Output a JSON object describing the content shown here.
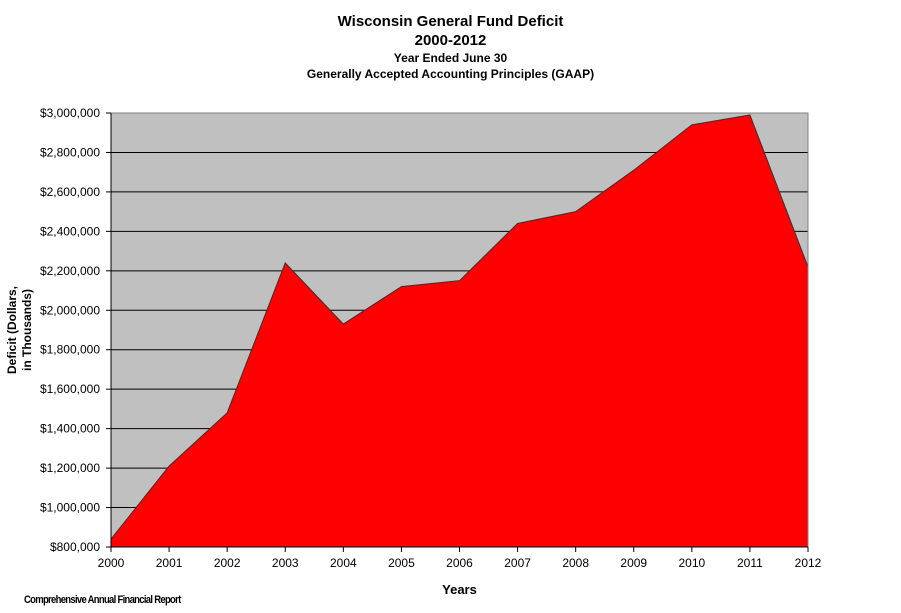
{
  "header": {
    "title": "Wisconsin General Fund Deficit",
    "subtitle": "2000-2012",
    "line3": "Year Ended June 30",
    "line4": "Generally Accepted Accounting  Principles (GAAP)"
  },
  "footer": {
    "source": "Comprehensive Annual Financial Report"
  },
  "colors": {
    "plot_background": "#c0c0c0",
    "area_fill": "#ff0000",
    "gridline": "#000000"
  },
  "chart_data": {
    "type": "area",
    "title": "Wisconsin General Fund Deficit",
    "xlabel": "Years",
    "ylabel_lines": [
      "Deficit (Dollars,",
      "in Thousands)"
    ],
    "x": [
      "2000",
      "2001",
      "2002",
      "2003",
      "2004",
      "2005",
      "2006",
      "2007",
      "2008",
      "2009",
      "2010",
      "2011",
      "2012"
    ],
    "series": [
      {
        "values": [
          840000,
          1210000,
          1480000,
          2240000,
          1930000,
          2120000,
          2150000,
          2440000,
          2500000,
          2710000,
          2940000,
          2990000,
          2220000
        ]
      }
    ],
    "ylim": [
      800000,
      3000000
    ],
    "yticks": [
      800000,
      1000000,
      1200000,
      1400000,
      1600000,
      1800000,
      2000000,
      2200000,
      2400000,
      2600000,
      2800000,
      3000000
    ],
    "ytick_labels": [
      "$800,000",
      "$1,000,000",
      "$1,200,000",
      "$1,400,000",
      "$1,600,000",
      "$1,800,000",
      "$2,000,000",
      "$2,200,000",
      "$2,400,000",
      "$2,600,000",
      "$2,800,000",
      "$3,000,000"
    ],
    "grid": true,
    "legend": "none"
  }
}
